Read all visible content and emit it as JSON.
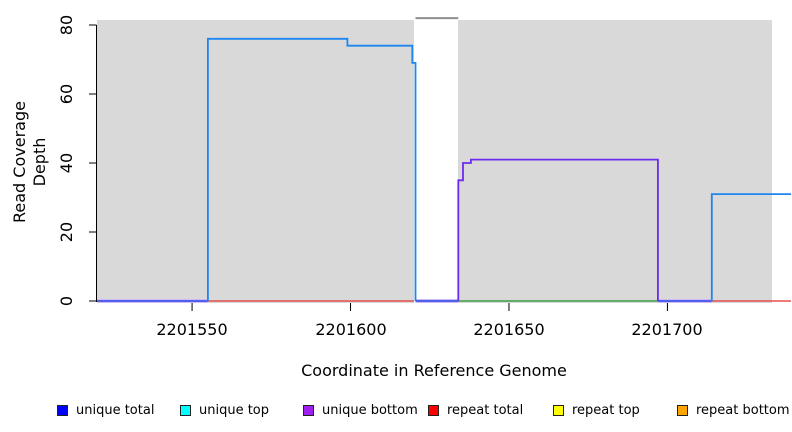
{
  "chart_data": {
    "type": "line",
    "subtype": "step-coverage",
    "title": "",
    "xlabel": "Coordinate in Reference Genome",
    "ylabel": "Read Coverage Depth",
    "x_range": [
      2201520,
      2201733
    ],
    "y_range": [
      0,
      80
    ],
    "grid": false,
    "plot_bg_color": "#d9d9d9",
    "x_ticks": [
      {
        "value": 2201550,
        "label": "2201550"
      },
      {
        "value": 2201600,
        "label": "2201600"
      },
      {
        "value": 2201650,
        "label": "2201650"
      },
      {
        "value": 2201700,
        "label": "2201700"
      }
    ],
    "y_ticks": [
      {
        "value": 80,
        "label": "80"
      },
      {
        "value": 60,
        "label": "60"
      },
      {
        "value": 40,
        "label": "40"
      },
      {
        "value": 20,
        "label": "20"
      },
      {
        "value": 0,
        "label": "0"
      }
    ],
    "masked_region": {
      "x_start": 2201620,
      "x_end": 2201634
    },
    "series": [
      {
        "name": "repeat-total-zero-left",
        "color": "#e5504e",
        "width": 1.6,
        "points": [
          [
            2201555,
            0
          ],
          [
            2201620,
            0
          ]
        ]
      },
      {
        "name": "repeat-total-zero-right",
        "color": "#e5504e",
        "width": 1.6,
        "points": [
          [
            2201714,
            0
          ],
          [
            2201739,
            0
          ]
        ]
      },
      {
        "name": "repeat-zero-green",
        "color": "#3c9e46",
        "width": 1.6,
        "points": [
          [
            2201634,
            0
          ],
          [
            2201697,
            0
          ]
        ]
      },
      {
        "name": "unique-bottom-zero-halo-a",
        "color": "#cbbcf6",
        "width": 4,
        "points": [
          [
            2201520,
            0
          ],
          [
            2201555,
            0
          ]
        ]
      },
      {
        "name": "unique-bottom-zero-halo-b",
        "color": "#cbbcf6",
        "width": 4,
        "points": [
          [
            2201620.5,
            0
          ],
          [
            2201634,
            0
          ]
        ]
      },
      {
        "name": "unique-bottom-zero-halo-c",
        "color": "#cbbcf6",
        "width": 4,
        "points": [
          [
            2201697,
            0
          ],
          [
            2201714,
            0
          ]
        ]
      },
      {
        "name": "unique-total-zero-a",
        "color": "#4052e6",
        "width": 1.8,
        "points": [
          [
            2201520,
            0
          ],
          [
            2201555,
            0
          ]
        ]
      },
      {
        "name": "unique-total-zero-b",
        "color": "#4052e6",
        "width": 1.8,
        "points": [
          [
            2201620.5,
            0
          ],
          [
            2201634,
            0
          ]
        ]
      },
      {
        "name": "unique-total-zero-c",
        "color": "#4052e6",
        "width": 1.8,
        "points": [
          [
            2201697,
            0
          ],
          [
            2201714,
            0
          ]
        ]
      },
      {
        "name": "unique-bottom",
        "color": "#6c2bee",
        "width": 1.8,
        "points": [
          [
            2201634,
            0
          ],
          [
            2201634,
            35
          ],
          [
            2201635.5,
            35
          ],
          [
            2201635.5,
            40
          ],
          [
            2201638,
            40
          ],
          [
            2201638,
            41
          ],
          [
            2201697,
            41
          ],
          [
            2201697,
            0
          ]
        ]
      },
      {
        "name": "unique-total-left-block",
        "color": "#1e86f0",
        "width": 1.8,
        "points": [
          [
            2201555,
            0
          ],
          [
            2201555,
            76
          ],
          [
            2201599,
            76
          ],
          [
            2201599,
            74
          ],
          [
            2201619.5,
            74
          ],
          [
            2201619.5,
            69
          ],
          [
            2201620.5,
            69
          ],
          [
            2201620.5,
            0
          ]
        ]
      },
      {
        "name": "unique-total-right-block",
        "color": "#1e86f0",
        "width": 1.8,
        "points": [
          [
            2201714,
            0
          ],
          [
            2201714,
            31
          ],
          [
            2201739,
            31
          ]
        ]
      },
      {
        "name": "clipped-total-above-ylim",
        "color": "#8f8f8f",
        "width": 2,
        "points": [
          [
            2201620.5,
            82
          ],
          [
            2201634,
            82
          ]
        ]
      }
    ],
    "legend": [
      {
        "label": "unique total",
        "color": "#0000ff"
      },
      {
        "label": "unique top",
        "color": "#00ffff"
      },
      {
        "label": "unique bottom",
        "color": "#a020f0"
      },
      {
        "label": "repeat total",
        "color": "#ff0000"
      },
      {
        "label": "repeat top",
        "color": "#ffff00"
      },
      {
        "label": "repeat bottom",
        "color": "#ffa500"
      }
    ]
  }
}
